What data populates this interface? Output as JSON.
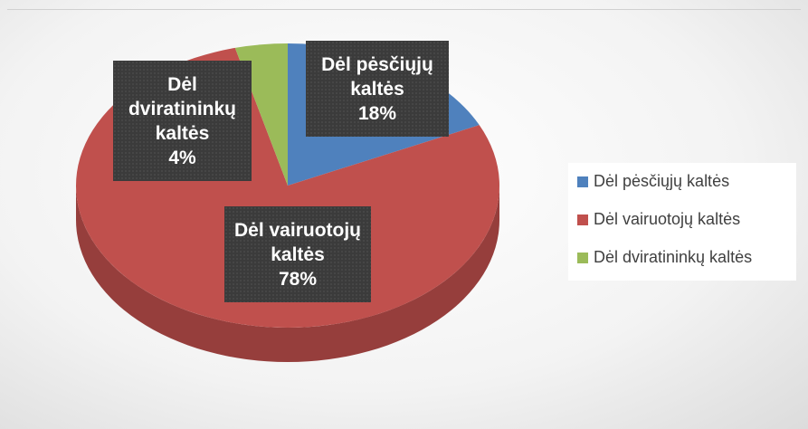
{
  "chart_data": {
    "type": "pie",
    "categories": [
      "Dėl pėsčiųjų kaltės",
      "Dėl vairuotojų kaltės",
      "Dėl dviratininkų kaltės"
    ],
    "values": [
      18,
      78,
      4
    ],
    "value_labels": [
      "18%",
      "78%",
      "4%"
    ],
    "colors": [
      "#4f81bd",
      "#c0504d",
      "#9bbb59"
    ],
    "legend": "right"
  }
}
